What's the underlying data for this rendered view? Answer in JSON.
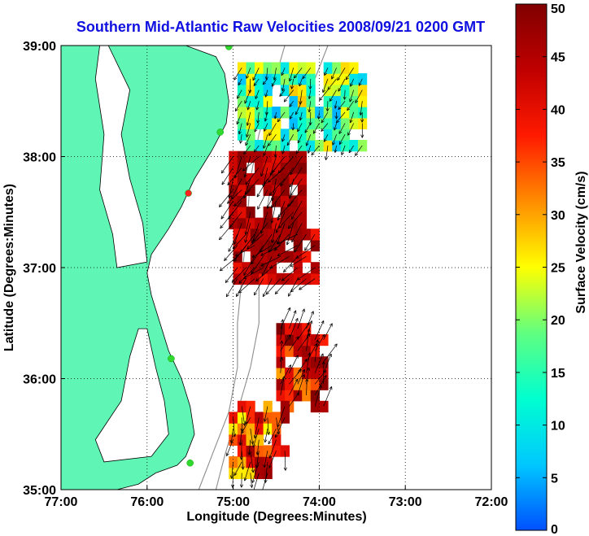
{
  "title": "Southern Mid-Atlantic Raw Velocities 2008/09/21 0200 GMT",
  "x_axis": {
    "label": "Longitude (Degrees:Minutes)",
    "ticks": [
      {
        "value": -77,
        "label": "77:00"
      },
      {
        "value": -76,
        "label": "76:00"
      },
      {
        "value": -75,
        "label": "75:00"
      },
      {
        "value": -74,
        "label": "74:00"
      },
      {
        "value": -73,
        "label": "73:00"
      },
      {
        "value": -72,
        "label": "72:00"
      }
    ],
    "range": [
      -77,
      -72
    ]
  },
  "y_axis": {
    "label": "Latitude (Degrees:Minutes)",
    "ticks": [
      {
        "value": 39,
        "label": "39:00"
      },
      {
        "value": 38,
        "label": "38:00"
      },
      {
        "value": 37,
        "label": "37:00"
      },
      {
        "value": 36,
        "label": "36:00"
      },
      {
        "value": 35,
        "label": "35:00"
      }
    ],
    "range": [
      35,
      39
    ]
  },
  "colorbar": {
    "label": "Surface Velocity (cm/s)",
    "ticks": [
      {
        "value": 50,
        "label": "50"
      },
      {
        "value": 45,
        "label": "45"
      },
      {
        "value": 40,
        "label": "40"
      },
      {
        "value": 35,
        "label": "35"
      },
      {
        "value": 30,
        "label": "30"
      },
      {
        "value": 25,
        "label": "25"
      },
      {
        "value": 20,
        "label": "20"
      },
      {
        "value": 15,
        "label": "15"
      },
      {
        "value": 10,
        "label": "10"
      },
      {
        "value": 5,
        "label": "5"
      },
      {
        "value": 0,
        "label": "0"
      }
    ],
    "range": [
      0,
      50
    ],
    "colormap": [
      "#0050ff",
      "#00c8ff",
      "#00ffd0",
      "#60ff80",
      "#ffff00",
      "#ff8c00",
      "#ff1a00",
      "#c00000",
      "#800000"
    ]
  },
  "colors": {
    "land": "#5ff5b4",
    "water": "#ffffff",
    "grid": "#000000",
    "isobath": "#8c8c8c",
    "station": "#30d830",
    "station_offline": "#ff2020",
    "title": "#1010e0"
  },
  "map": {
    "coastline_lonlat": [
      [
        -77.0,
        39.0
      ],
      [
        -75.55,
        39.0
      ],
      [
        -75.2,
        38.9
      ],
      [
        -75.1,
        38.75
      ],
      [
        -75.05,
        38.5
      ],
      [
        -75.08,
        38.3
      ],
      [
        -75.25,
        38.05
      ],
      [
        -75.45,
        37.8
      ],
      [
        -75.6,
        37.55
      ],
      [
        -75.75,
        37.35
      ],
      [
        -75.95,
        37.12
      ],
      [
        -76.0,
        36.95
      ],
      [
        -75.95,
        36.75
      ],
      [
        -75.85,
        36.5
      ],
      [
        -75.75,
        36.25
      ],
      [
        -75.6,
        36.0
      ],
      [
        -75.5,
        35.75
      ],
      [
        -75.45,
        35.5
      ],
      [
        -75.55,
        35.3
      ],
      [
        -75.65,
        35.22
      ],
      [
        -75.9,
        35.15
      ],
      [
        -76.1,
        35.05
      ],
      [
        -76.35,
        35.0
      ],
      [
        -77.0,
        35.0
      ]
    ],
    "bays_lonlat": [
      [
        [
          -76.45,
          39.0
        ],
        [
          -76.2,
          38.6
        ],
        [
          -76.3,
          38.2
        ],
        [
          -76.2,
          37.8
        ],
        [
          -76.05,
          37.4
        ],
        [
          -76.0,
          37.05
        ],
        [
          -76.35,
          37.0
        ],
        [
          -76.4,
          37.3
        ],
        [
          -76.55,
          37.7
        ],
        [
          -76.5,
          38.2
        ],
        [
          -76.6,
          38.7
        ],
        [
          -76.55,
          39.0
        ]
      ],
      [
        [
          -76.0,
          36.45
        ],
        [
          -75.9,
          36.1
        ],
        [
          -75.8,
          35.8
        ],
        [
          -75.75,
          35.5
        ],
        [
          -75.95,
          35.3
        ],
        [
          -76.5,
          35.25
        ],
        [
          -76.6,
          35.45
        ],
        [
          -76.3,
          35.8
        ],
        [
          -76.2,
          36.2
        ],
        [
          -76.1,
          36.45
        ]
      ]
    ],
    "isobaths_lonlat": [
      [
        [
          -74.4,
          39.0
        ],
        [
          -74.55,
          38.6
        ],
        [
          -74.7,
          38.2
        ],
        [
          -74.8,
          37.8
        ],
        [
          -74.85,
          37.3
        ],
        [
          -74.9,
          36.9
        ],
        [
          -74.95,
          36.5
        ],
        [
          -74.95,
          36.1
        ],
        [
          -75.05,
          35.7
        ],
        [
          -75.25,
          35.3
        ],
        [
          -75.4,
          35.0
        ]
      ],
      [
        [
          -73.9,
          39.0
        ],
        [
          -74.1,
          38.6
        ],
        [
          -74.35,
          38.2
        ],
        [
          -74.55,
          37.8
        ],
        [
          -74.65,
          37.3
        ],
        [
          -74.7,
          36.9
        ],
        [
          -74.7,
          36.5
        ],
        [
          -74.8,
          36.1
        ],
        [
          -74.95,
          35.7
        ],
        [
          -75.1,
          35.3
        ],
        [
          -75.2,
          35.0
        ]
      ]
    ],
    "stations_lonlat": [
      {
        "lon": -75.05,
        "lat": 38.99,
        "status": "online"
      },
      {
        "lon": -75.15,
        "lat": 38.22,
        "status": "online"
      },
      {
        "lon": -75.52,
        "lat": 37.67,
        "status": "offline"
      },
      {
        "lon": -75.72,
        "lat": 36.18,
        "status": "online"
      },
      {
        "lon": -75.5,
        "lat": 35.24,
        "status": "online"
      }
    ],
    "velocity_clusters": [
      {
        "lon_range": [
          -74.95,
          -73.5
        ],
        "lat_range": [
          38.05,
          38.85
        ],
        "speed_range": [
          5,
          28
        ],
        "dir_deg": 200
      },
      {
        "lon_range": [
          -75.05,
          -74.2
        ],
        "lat_range": [
          37.35,
          38.05
        ],
        "speed_range": [
          40,
          50
        ],
        "dir_deg": 210
      },
      {
        "lon_range": [
          -75.0,
          -74.05
        ],
        "lat_range": [
          36.85,
          37.35
        ],
        "speed_range": [
          38,
          50
        ],
        "dir_deg": 225
      },
      {
        "lon_range": [
          -74.5,
          -73.95
        ],
        "lat_range": [
          35.7,
          36.5
        ],
        "speed_range": [
          30,
          50
        ],
        "dir_deg": 20
      },
      {
        "lon_range": [
          -75.05,
          -74.4
        ],
        "lat_range": [
          35.1,
          35.8
        ],
        "speed_range": [
          25,
          48
        ],
        "dir_deg": 190
      }
    ]
  }
}
